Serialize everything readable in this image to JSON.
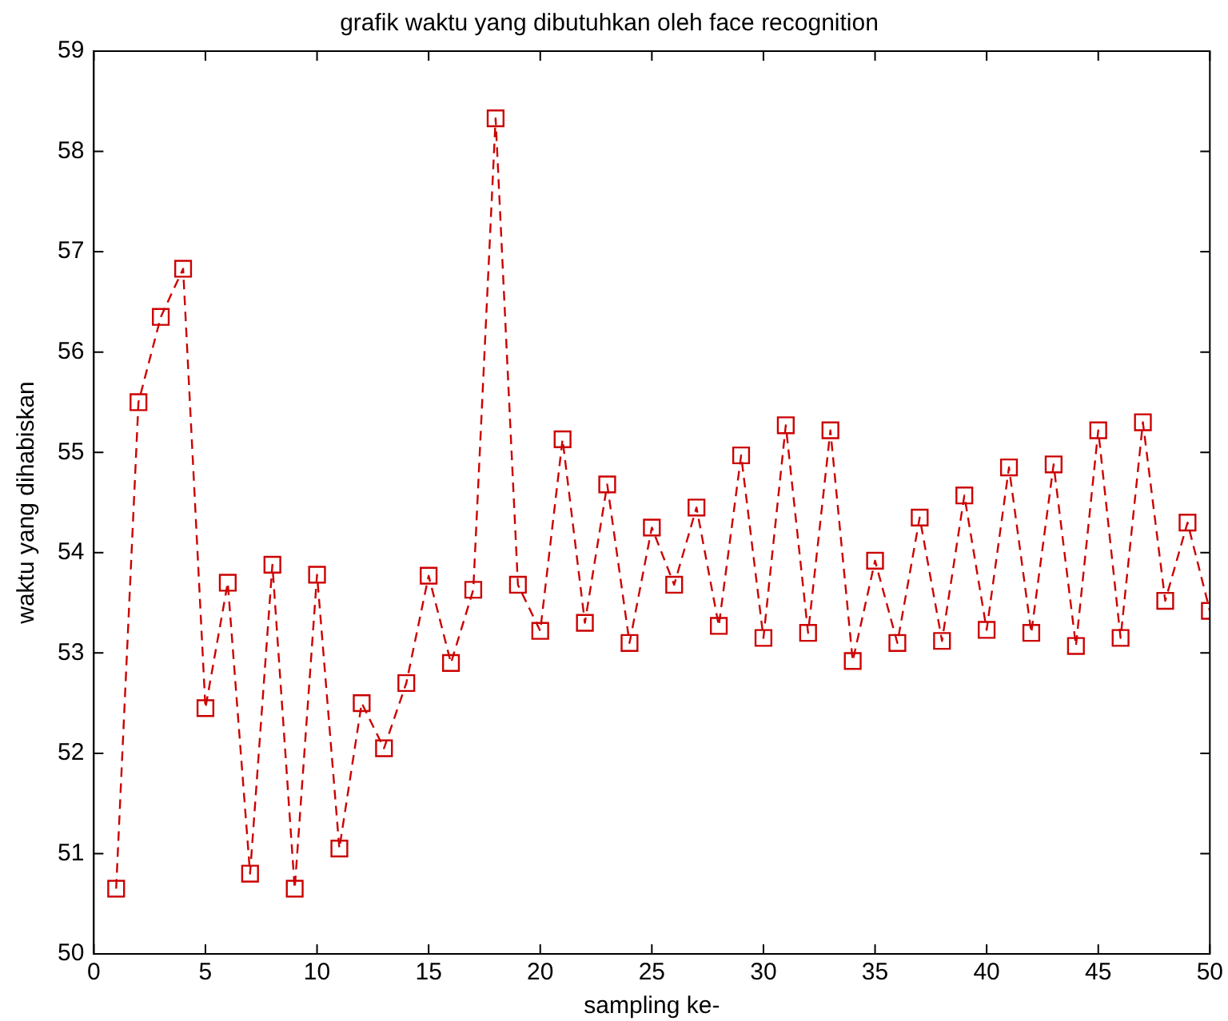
{
  "chart_data": {
    "type": "line",
    "title": "grafik waktu yang dibutuhkan oleh face recognition",
    "xlabel": "sampling ke-",
    "ylabel": "waktu yang dihabiskan",
    "x": [
      1,
      2,
      3,
      4,
      5,
      6,
      7,
      8,
      9,
      10,
      11,
      12,
      13,
      14,
      15,
      16,
      17,
      18,
      19,
      20,
      21,
      22,
      23,
      24,
      25,
      26,
      27,
      28,
      29,
      30,
      31,
      32,
      33,
      34,
      35,
      36,
      37,
      38,
      39,
      40,
      41,
      42,
      43,
      44,
      45,
      46,
      47,
      48,
      49,
      50
    ],
    "series": [
      {
        "color": "#cc0000",
        "values": [
          50.65,
          55.5,
          56.35,
          56.83,
          52.45,
          53.7,
          50.8,
          53.88,
          50.65,
          53.78,
          51.05,
          52.5,
          52.05,
          52.7,
          53.77,
          52.9,
          53.63,
          58.33,
          53.68,
          53.22,
          55.13,
          53.3,
          54.68,
          53.1,
          54.25,
          53.68,
          54.45,
          53.27,
          54.97,
          53.15,
          55.27,
          53.2,
          55.22,
          52.92,
          53.92,
          53.1,
          54.35,
          53.12,
          54.57,
          53.23,
          54.85,
          53.2,
          54.88,
          53.07,
          55.22,
          53.15,
          55.3,
          53.52,
          54.3,
          53.42
        ]
      }
    ],
    "xlim": [
      0,
      50
    ],
    "xticks": [
      0,
      5,
      10,
      15,
      20,
      25,
      30,
      35,
      40,
      45,
      50
    ],
    "ylim": [
      50,
      59
    ],
    "yticks": [
      50,
      51,
      52,
      53,
      54,
      55,
      56,
      57,
      58,
      59
    ],
    "grid": false,
    "legend": false,
    "marker": "square",
    "line_style": "dashed"
  }
}
